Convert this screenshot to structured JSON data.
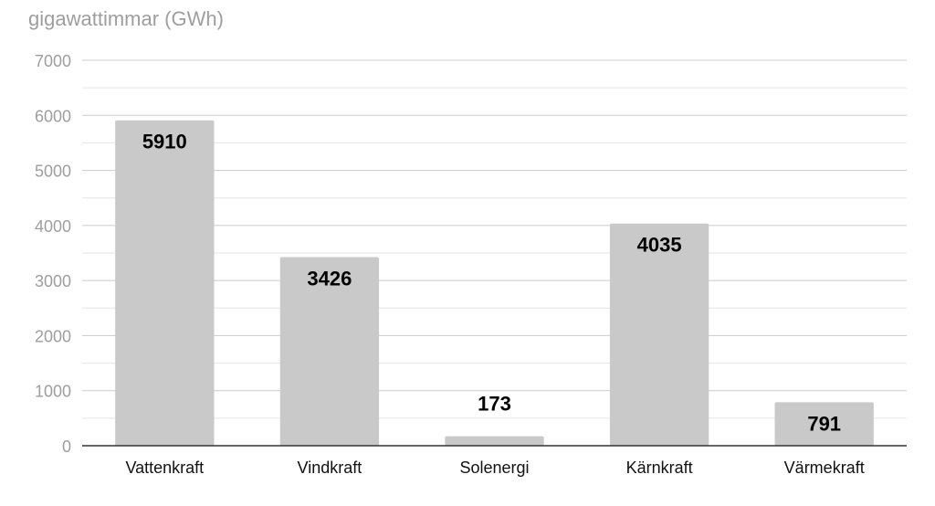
{
  "chart_data": {
    "type": "bar",
    "title": "",
    "xlabel": "",
    "ylabel": "gigawattimmar (GWh)",
    "categories": [
      "Vattenkraft",
      "Vindkraft",
      "Solenergi",
      "Kärnkraft",
      "Värmekraft"
    ],
    "values": [
      5910,
      3426,
      173,
      4035,
      791
    ],
    "value_labels": [
      "5910",
      "3426",
      "173",
      "4035",
      "791"
    ],
    "ylim": [
      0,
      7000
    ],
    "yticks": [
      0,
      1000,
      2000,
      3000,
      4000,
      5000,
      6000,
      7000
    ],
    "ytick_labels": [
      "0",
      "1000",
      "2000",
      "3000",
      "4000",
      "5000",
      "6000",
      "7000"
    ],
    "grid": true,
    "minor_grid": true,
    "legend": "none",
    "colors": {
      "bar": "#c9c9c9",
      "major_grid": "#cccccc",
      "minor_grid": "#e6e6e6",
      "axis": "#333333",
      "tick_label": "#9e9e9e",
      "category_label": "#111111",
      "value_label": "#000000"
    }
  }
}
